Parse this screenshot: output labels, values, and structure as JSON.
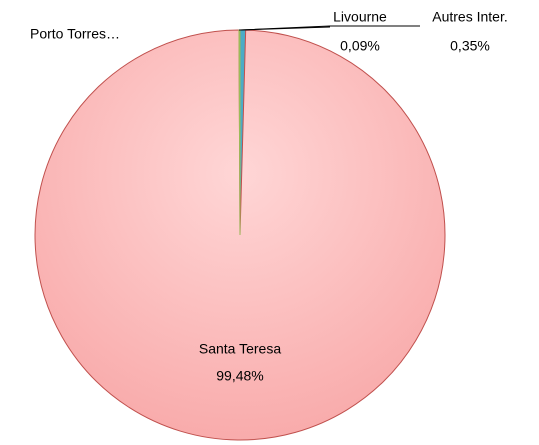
{
  "chart_data": {
    "type": "pie",
    "categories": [
      "Livourne",
      "Autres Inter.",
      "Santa Teresa",
      "Porto Torres…"
    ],
    "values": [
      0.09,
      0.35,
      99.48,
      0.08
    ],
    "value_labels": [
      "0,09%",
      "0,35%",
      "99,48%",
      null
    ],
    "colors": [
      "#4f81bd",
      "#4bacc6",
      "#fbb3b3",
      "#9bbb59"
    ],
    "stroke": "#c0504d"
  }
}
